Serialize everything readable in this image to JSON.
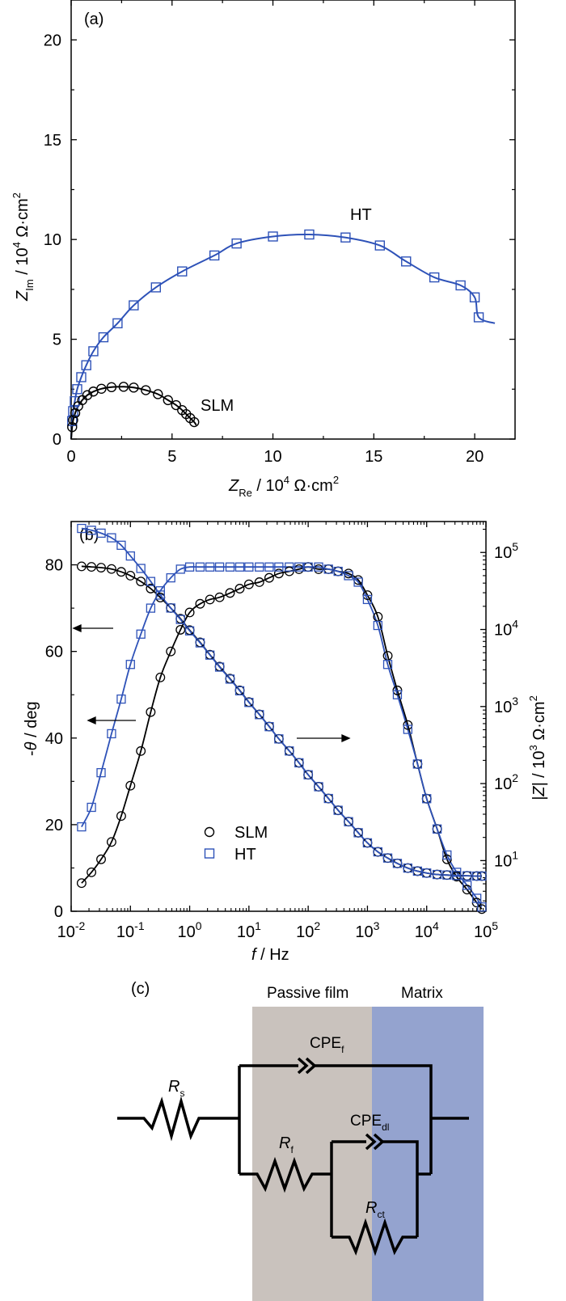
{
  "colors": {
    "slm": "#000000",
    "ht": "#2E52B8",
    "film": "#C9C2BD",
    "matrix": "#94A3CF"
  },
  "panel_a": {
    "label": "(a)",
    "xlabel": {
      "sym": "Z",
      "sub": "Re",
      "unit": " / 10",
      "exp": "4",
      "unit2": " Ω·cm",
      "exp2": "2"
    },
    "ylabel": {
      "sym": "Z",
      "sub": "Im",
      "unit": " / 10",
      "exp": "4",
      "unit2": " Ω·cm",
      "exp2": "2"
    },
    "xticks": [
      "0",
      "5",
      "10",
      "15",
      "20"
    ],
    "yticks": [
      "0",
      "5",
      "10",
      "15",
      "20"
    ],
    "annot_ht": "HT",
    "annot_slm": "SLM"
  },
  "panel_b": {
    "label": "(b)",
    "xlabel": {
      "sym": "f",
      "unit": " / Hz"
    },
    "ylabel_left": {
      "pre": "-",
      "sym": "θ",
      "unit": " / deg"
    },
    "ylabel_right": {
      "sym": "|Z|",
      "unit": " / 10",
      "exp": "3",
      "unit2": " Ω·cm",
      "exp2": "2"
    },
    "left_ticks": [
      "0",
      "20",
      "40",
      "60",
      "80"
    ],
    "x_base": "10",
    "x_exps": [
      "-2",
      "-1",
      "0",
      "1",
      "2",
      "3",
      "4",
      "5"
    ],
    "right_base": "10",
    "right_exps": [
      "1",
      "2",
      "3",
      "4",
      "5"
    ],
    "legend": [
      {
        "label": "SLM",
        "marker": "circle"
      },
      {
        "label": "HT",
        "marker": "square"
      }
    ]
  },
  "panel_c": {
    "label": "(c)",
    "region_film": "Passive film",
    "region_matrix": "Matrix",
    "rs": {
      "sym": "R",
      "sub": "s"
    },
    "rf": {
      "sym": "R",
      "sub": "f"
    },
    "rct": {
      "sym": "R",
      "sub": "ct"
    },
    "cpef": {
      "main": "CPE",
      "sub": "f"
    },
    "cpedl": {
      "main": "CPE",
      "sub": "dl"
    }
  },
  "chart_data": [
    {
      "type": "scatter",
      "title": "",
      "xlim": [
        0,
        22.0
      ],
      "ylim": [
        0,
        22.0
      ],
      "series": [
        {
          "name": "HT",
          "x": [
            0.05,
            0.1,
            0.18,
            0.3,
            0.5,
            0.75,
            1.1,
            1.6,
            2.3,
            3.1,
            4.2,
            5.5,
            7.1,
            8.2,
            10.0,
            11.8,
            13.6,
            15.3,
            16.6,
            18.0,
            19.3,
            20.0,
            20.2
          ],
          "y": [
            0.9,
            1.4,
            1.9,
            2.5,
            3.1,
            3.7,
            4.4,
            5.1,
            5.8,
            6.7,
            7.6,
            8.4,
            9.2,
            9.8,
            10.15,
            10.25,
            10.1,
            9.7,
            8.9,
            8.1,
            7.7,
            7.1,
            6.1
          ]
        },
        {
          "name": "SLM",
          "x": [
            0.05,
            0.1,
            0.2,
            0.35,
            0.55,
            0.8,
            1.1,
            1.5,
            2.0,
            2.6,
            3.1,
            3.7,
            4.3,
            4.8,
            5.2,
            5.5,
            5.7,
            5.9,
            6.1
          ],
          "y": [
            0.6,
            0.95,
            1.3,
            1.65,
            1.95,
            2.2,
            2.38,
            2.52,
            2.6,
            2.62,
            2.58,
            2.45,
            2.25,
            1.95,
            1.7,
            1.45,
            1.25,
            1.05,
            0.85
          ]
        }
      ]
    },
    {
      "type": "scatter",
      "title": "",
      "x_scale": "log",
      "xlim": [
        0.01,
        100000
      ],
      "ylim_left": [
        0,
        90
      ],
      "ylim_right_log": [
        2.2,
        252000
      ],
      "series": [
        {
          "name": "SLM",
          "axis": "left",
          "x": [
            0.015,
            0.022,
            0.032,
            0.048,
            0.07,
            0.1,
            0.15,
            0.22,
            0.32,
            0.48,
            0.7,
            1.0,
            1.5,
            2.2,
            3.2,
            4.8,
            7.0,
            10,
            15,
            22,
            32,
            48,
            70,
            100,
            150,
            220,
            320,
            480,
            700,
            1000,
            1500,
            2200,
            3200,
            4800,
            7000,
            10000,
            15000,
            22000,
            32000,
            48000,
            70000,
            85000
          ],
          "y": [
            6.5,
            9,
            12,
            16,
            22,
            29,
            37,
            46,
            54,
            60,
            65,
            69,
            71,
            72,
            72.5,
            73.5,
            74.5,
            75.5,
            76,
            77,
            78,
            78.5,
            79,
            79.5,
            79,
            79,
            78.5,
            78,
            76.5,
            73,
            68,
            59,
            51,
            43,
            34,
            26,
            19,
            12,
            8,
            5,
            2,
            0.5
          ]
        },
        {
          "name": "HT",
          "axis": "left",
          "x": [
            0.015,
            0.022,
            0.032,
            0.048,
            0.07,
            0.1,
            0.15,
            0.22,
            0.32,
            0.48,
            0.7,
            1.0,
            1.5,
            2.2,
            3.2,
            4.8,
            7.0,
            10,
            15,
            22,
            32,
            48,
            70,
            100,
            150,
            220,
            320,
            480,
            700,
            1000,
            1500,
            2200,
            3200,
            4800,
            7000,
            10000,
            15000,
            22000,
            32000,
            48000,
            70000,
            85000
          ],
          "y": [
            19.5,
            24,
            32,
            41,
            49,
            57,
            64,
            70,
            74,
            77,
            79,
            79.5,
            79.5,
            79.5,
            79.5,
            79.5,
            79.5,
            79.5,
            79.5,
            79.5,
            79.5,
            79.5,
            79.5,
            79.5,
            79.5,
            79,
            78.5,
            77.5,
            76,
            72,
            66,
            57,
            50,
            42,
            34,
            26,
            19,
            13,
            9,
            6,
            3,
            1
          ]
        },
        {
          "name": "SLM |Z|",
          "axis": "right",
          "unit": "10^3 Ω·cm²",
          "x": [
            0.015,
            0.022,
            0.032,
            0.048,
            0.07,
            0.1,
            0.15,
            0.22,
            0.32,
            0.48,
            0.7,
            1.0,
            1.5,
            2.2,
            3.2,
            4.8,
            7.0,
            10,
            15,
            22,
            32,
            48,
            70,
            100,
            150,
            220,
            320,
            480,
            700,
            1000,
            1500,
            2200,
            3200,
            4800,
            7000,
            10000,
            15000,
            22000,
            32000,
            48000,
            70000,
            85000
          ],
          "y": [
            66000,
            65000,
            63500,
            61000,
            56000,
            50000,
            42000,
            34000,
            26000,
            19000,
            13800,
            9800,
            6800,
            4700,
            3300,
            2300,
            1620,
            1140,
            790,
            550,
            380,
            265,
            186,
            130,
            91,
            64,
            45,
            32,
            23,
            17,
            13,
            10.8,
            9.2,
            8.0,
            7.3,
            6.9,
            6.6,
            6.5,
            6.4,
            6.35,
            6.3,
            6.3
          ]
        },
        {
          "name": "HT |Z|",
          "axis": "right",
          "unit": "10^3 Ω·cm²",
          "x": [
            0.015,
            0.022,
            0.032,
            0.048,
            0.07,
            0.1,
            0.15,
            0.22,
            0.32,
            0.48,
            0.7,
            1.0,
            1.5,
            2.2,
            3.2,
            4.8,
            7.0,
            10,
            15,
            22,
            32,
            48,
            70,
            100,
            150,
            220,
            320,
            480,
            700,
            1000,
            1500,
            2200,
            3200,
            4800,
            7000,
            10000,
            15000,
            22000,
            32000,
            48000,
            70000,
            85000
          ],
          "y": [
            205000,
            194000,
            178000,
            155000,
            124000,
            90000,
            62000,
            42000,
            28000,
            19000,
            13500,
            9600,
            6700,
            4650,
            3250,
            2270,
            1600,
            1130,
            785,
            548,
            380,
            265,
            186,
            130,
            91,
            64,
            45,
            32,
            23,
            17,
            13,
            10.8,
            9.2,
            8.0,
            7.3,
            6.9,
            6.6,
            6.5,
            6.4,
            6.35,
            6.3,
            6.3
          ]
        }
      ]
    }
  ]
}
